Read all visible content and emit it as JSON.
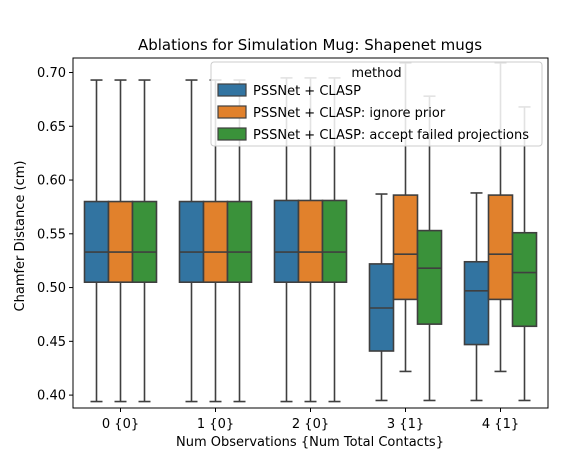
{
  "chart_data": {
    "type": "box",
    "title": "Ablations for Simulation Mug: Shapenet mugs",
    "xlabel": "Num Observations {Num Total Contacts}",
    "ylabel": "Chamfer Distance (cm)",
    "categories": [
      "0 {0}",
      "1 {0}",
      "2 {0}",
      "3 {1}",
      "4 {1}"
    ],
    "ylim": [
      0.388,
      0.7135
    ],
    "yticks": [
      0.4,
      0.45,
      0.5,
      0.55,
      0.6,
      0.65,
      0.7
    ],
    "ytick_labels": [
      "0.40",
      "0.45",
      "0.50",
      "0.55",
      "0.60",
      "0.65",
      "0.70"
    ],
    "grid": false,
    "legend": {
      "title": "method",
      "position": "top-right"
    },
    "series": [
      {
        "name": "PSSNet + CLASP",
        "color": "#3274a1",
        "boxes": [
          {
            "whisker_low": 0.394,
            "q1": 0.505,
            "median": 0.533,
            "q3": 0.58,
            "whisker_high": 0.693
          },
          {
            "whisker_low": 0.394,
            "q1": 0.505,
            "median": 0.533,
            "q3": 0.58,
            "whisker_high": 0.693
          },
          {
            "whisker_low": 0.394,
            "q1": 0.505,
            "median": 0.533,
            "q3": 0.581,
            "whisker_high": 0.695
          },
          {
            "whisker_low": 0.395,
            "q1": 0.441,
            "median": 0.481,
            "q3": 0.522,
            "whisker_high": 0.587
          },
          {
            "whisker_low": 0.395,
            "q1": 0.447,
            "median": 0.497,
            "q3": 0.524,
            "whisker_high": 0.588
          }
        ]
      },
      {
        "name": "PSSNet + CLASP: ignore prior",
        "color": "#e1812c",
        "boxes": [
          {
            "whisker_low": 0.394,
            "q1": 0.505,
            "median": 0.533,
            "q3": 0.58,
            "whisker_high": 0.693
          },
          {
            "whisker_low": 0.394,
            "q1": 0.505,
            "median": 0.533,
            "q3": 0.58,
            "whisker_high": 0.693
          },
          {
            "whisker_low": 0.394,
            "q1": 0.505,
            "median": 0.533,
            "q3": 0.581,
            "whisker_high": 0.695
          },
          {
            "whisker_low": 0.422,
            "q1": 0.489,
            "median": 0.531,
            "q3": 0.586,
            "whisker_high": 0.709
          },
          {
            "whisker_low": 0.422,
            "q1": 0.489,
            "median": 0.531,
            "q3": 0.586,
            "whisker_high": 0.709
          }
        ]
      },
      {
        "name": "PSSNet + CLASP: accept failed projections",
        "color": "#3a923a",
        "boxes": [
          {
            "whisker_low": 0.394,
            "q1": 0.505,
            "median": 0.533,
            "q3": 0.58,
            "whisker_high": 0.693
          },
          {
            "whisker_low": 0.394,
            "q1": 0.505,
            "median": 0.533,
            "q3": 0.58,
            "whisker_high": 0.693
          },
          {
            "whisker_low": 0.394,
            "q1": 0.505,
            "median": 0.533,
            "q3": 0.581,
            "whisker_high": 0.695
          },
          {
            "whisker_low": 0.395,
            "q1": 0.466,
            "median": 0.518,
            "q3": 0.553,
            "whisker_high": 0.678
          },
          {
            "whisker_low": 0.395,
            "q1": 0.464,
            "median": 0.514,
            "q3": 0.551,
            "whisker_high": 0.668
          }
        ]
      }
    ]
  }
}
